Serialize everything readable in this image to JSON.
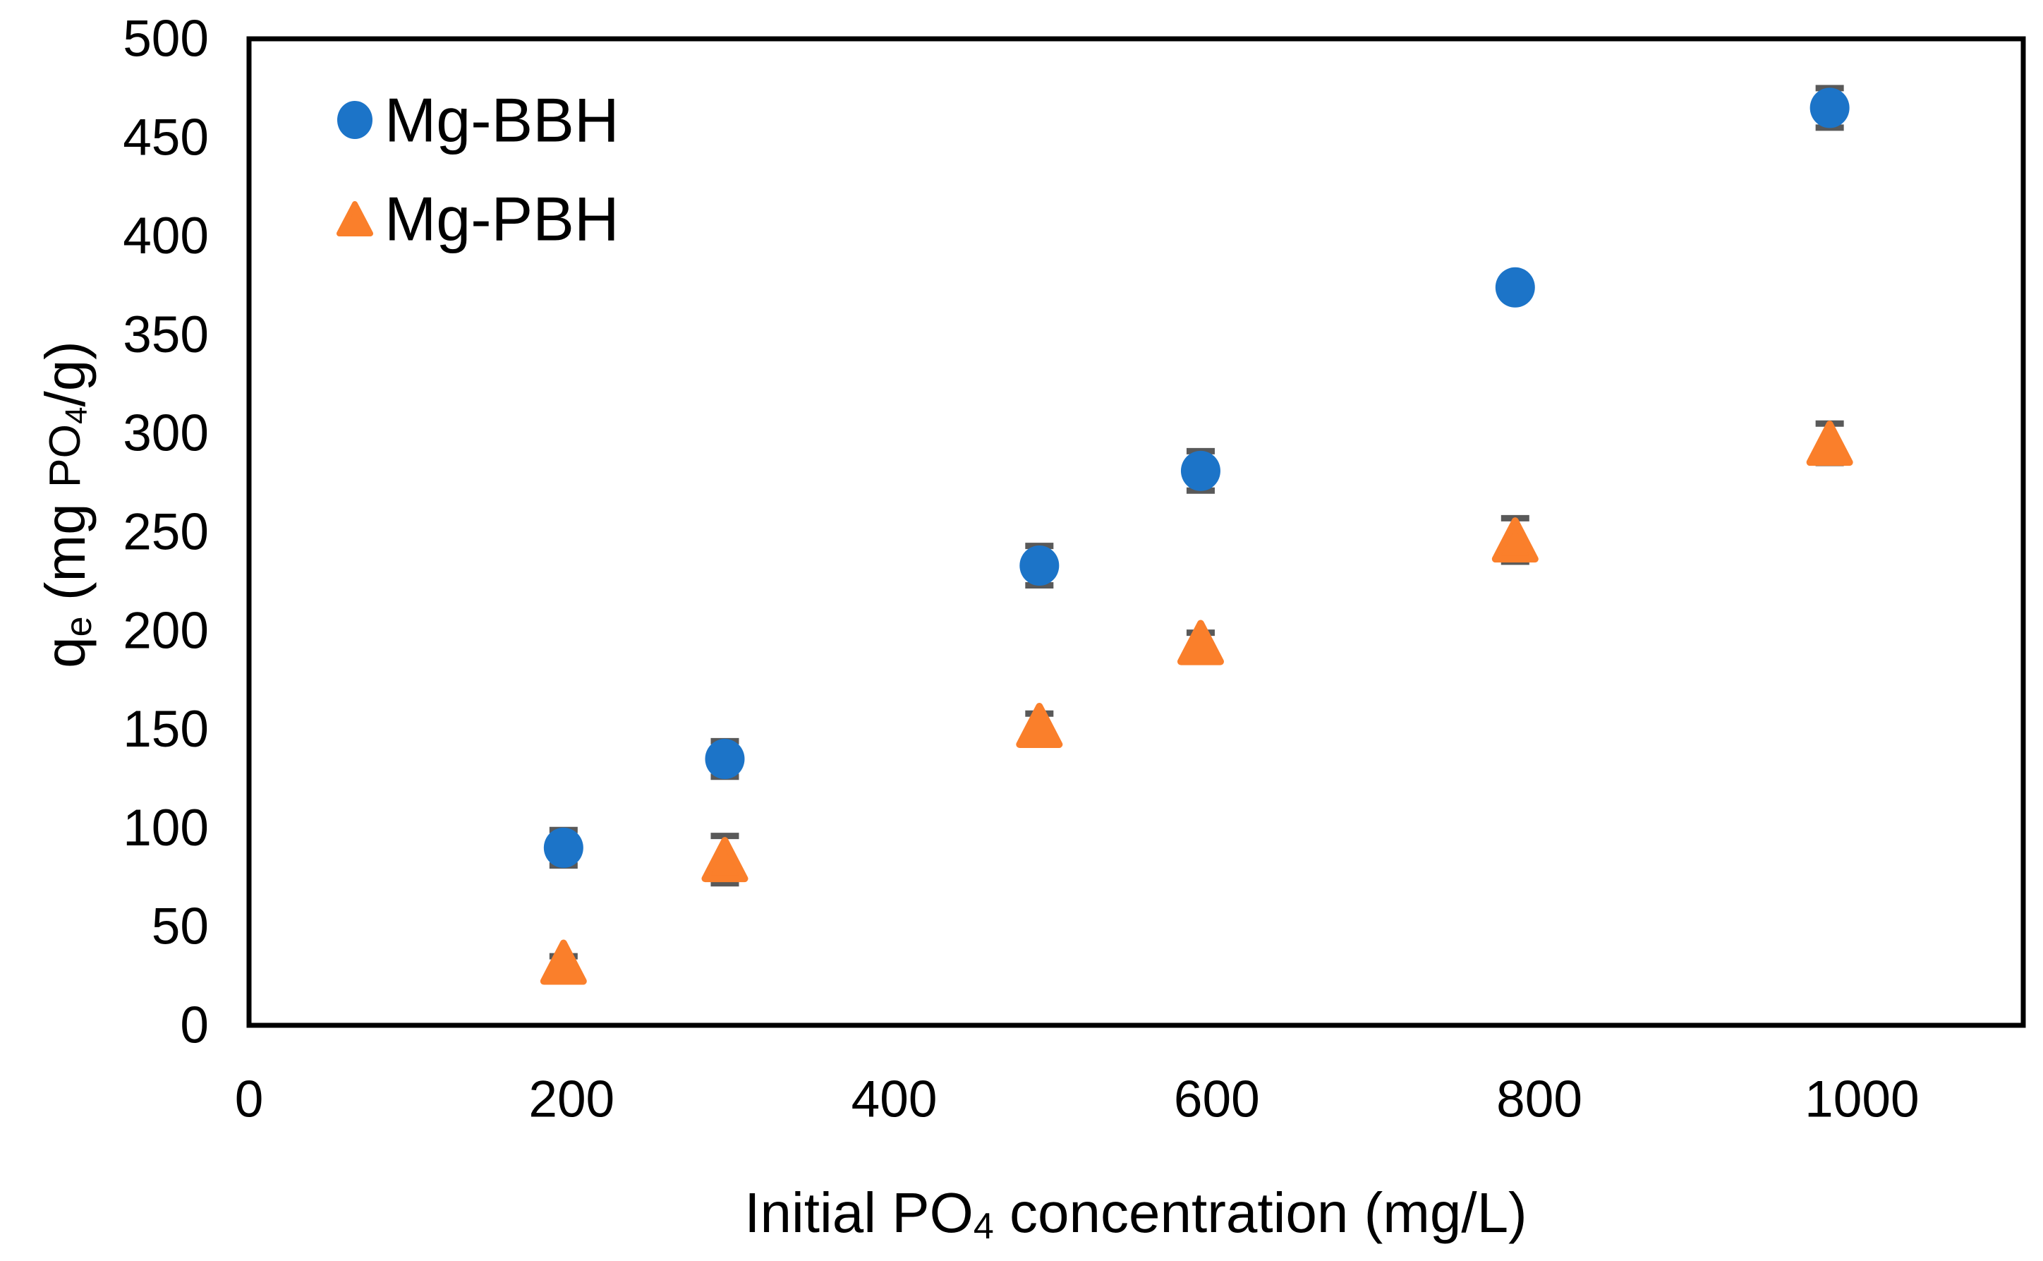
{
  "chart_data": {
    "type": "scatter",
    "title": "",
    "xlabel": "Initial PO₄ concentration (mg/L)",
    "ylabel": "qₑ (mg PO₄/g)",
    "xlabel_parts": [
      {
        "t": "Initial PO",
        "style": "normal"
      },
      {
        "t": "4",
        "style": "sub"
      },
      {
        "t": " concentration (mg/L)",
        "style": "normal"
      }
    ],
    "ylabel_parts": [
      {
        "t": "q",
        "style": "normal"
      },
      {
        "t": "e",
        "style": "sub"
      },
      {
        "t": " (mg ",
        "style": "normal"
      },
      {
        "t": "PO",
        "style": "small"
      },
      {
        "t": "4",
        "style": "subsmall"
      },
      {
        "t": "/g)",
        "style": "normal"
      }
    ],
    "xlim": [
      0,
      1100
    ],
    "ylim": [
      0,
      500
    ],
    "xticks": [
      0,
      200,
      400,
      600,
      800,
      1000
    ],
    "yticks": [
      0,
      50,
      100,
      150,
      200,
      250,
      300,
      350,
      400,
      450,
      500
    ],
    "grid": false,
    "legend_position": "inside-top-left",
    "colors": {
      "axis": "#000000",
      "error_bar": "#595959",
      "background": "#ffffff",
      "mg_bbh_blue": "#1C74C8",
      "mg_pbh_orange": "#FA7F2B"
    },
    "series": [
      {
        "name": "Mg-BBH",
        "marker": "circle",
        "color": "#1C74C8",
        "points": [
          {
            "x": 195,
            "y": 90,
            "yerr": 9
          },
          {
            "x": 295,
            "y": 135,
            "yerr": 9
          },
          {
            "x": 490,
            "y": 233,
            "yerr": 10
          },
          {
            "x": 590,
            "y": 281,
            "yerr": 10
          },
          {
            "x": 785,
            "y": 374,
            "yerr": 5
          },
          {
            "x": 980,
            "y": 465,
            "yerr": 10
          }
        ]
      },
      {
        "name": "Mg-PBH",
        "marker": "triangle",
        "color": "#FA7F2B",
        "points": [
          {
            "x": 195,
            "y": 32,
            "yerr": 3
          },
          {
            "x": 295,
            "y": 84,
            "yerr": 12
          },
          {
            "x": 490,
            "y": 152,
            "yerr": 6
          },
          {
            "x": 590,
            "y": 194,
            "yerr": 5
          },
          {
            "x": 785,
            "y": 246,
            "yerr": 11
          },
          {
            "x": 980,
            "y": 295,
            "yerr": 10
          }
        ]
      }
    ]
  }
}
